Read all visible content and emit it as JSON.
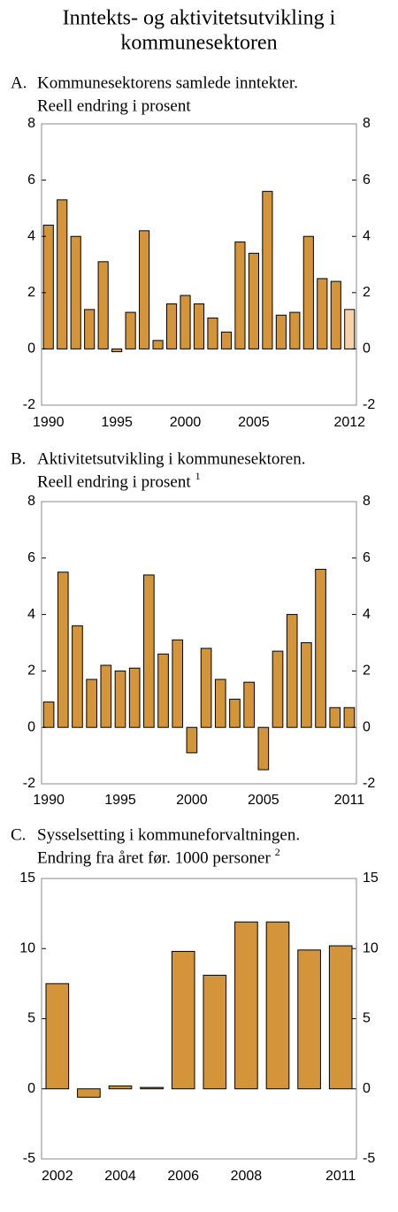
{
  "title": [
    "Inntekts- og aktivitetsutvikling i",
    "kommunesektoren"
  ],
  "chart_data": [
    {
      "type": "bar",
      "label": "A.",
      "title": [
        "Kommunesektorens samlede inntekter.",
        "Reell endring i prosent"
      ],
      "categories": [
        "1990",
        null,
        null,
        null,
        null,
        "1995",
        null,
        null,
        null,
        null,
        "2000",
        null,
        null,
        null,
        null,
        "2005",
        null,
        null,
        null,
        null,
        null,
        null,
        "2012"
      ],
      "values": [
        4.4,
        5.3,
        4.0,
        1.4,
        3.1,
        -0.1,
        1.3,
        4.2,
        0.3,
        1.6,
        1.9,
        1.6,
        1.1,
        0.6,
        3.8,
        3.4,
        5.6,
        1.2,
        1.3,
        4.0,
        2.5,
        2.4,
        1.4
      ],
      "colors": [
        "#d4943a",
        "#d4943a",
        "#d4943a",
        "#d4943a",
        "#d4943a",
        "#d4943a",
        "#d4943a",
        "#d4943a",
        "#d4943a",
        "#d4943a",
        "#d4943a",
        "#d4943a",
        "#d4943a",
        "#d4943a",
        "#d4943a",
        "#d4943a",
        "#d4943a",
        "#d4943a",
        "#d4943a",
        "#d4943a",
        "#d4943a",
        "#d4943a",
        "#f5d2a8"
      ],
      "ylim": [
        -2,
        8
      ],
      "yticks": [
        -2,
        0,
        2,
        4,
        6,
        8
      ]
    },
    {
      "type": "bar",
      "label": "B.",
      "title": [
        "Aktivitetsutvikling i kommunesektoren.",
        "Reell endring i prosent"
      ],
      "footnote": "1",
      "categories": [
        "1990",
        null,
        null,
        null,
        null,
        "1995",
        null,
        null,
        null,
        null,
        "2000",
        null,
        null,
        null,
        null,
        "2005",
        null,
        null,
        null,
        null,
        null,
        "2011"
      ],
      "values": [
        0.9,
        5.5,
        3.6,
        1.7,
        2.2,
        2.0,
        2.1,
        5.4,
        2.6,
        3.1,
        -0.9,
        2.8,
        1.7,
        1.0,
        1.6,
        -1.5,
        2.7,
        4.0,
        3.0,
        5.6,
        0.7,
        0.7
      ],
      "color": "#d4943a",
      "ylim": [
        -2,
        8
      ],
      "yticks": [
        -2,
        0,
        2,
        4,
        6,
        8
      ]
    },
    {
      "type": "bar",
      "label": "C.",
      "title": [
        "Sysselsetting i kommuneforvaltningen.",
        "Endring fra året før. 1000 personer"
      ],
      "footnote": "2",
      "categories": [
        "2002",
        null,
        "2004",
        null,
        "2006",
        null,
        "2008",
        null,
        null,
        "2011"
      ],
      "values": [
        7.5,
        -0.6,
        0.2,
        0.1,
        9.8,
        8.1,
        11.9,
        11.9,
        9.9,
        10.2
      ],
      "color": "#d4943a",
      "ylim": [
        -5,
        15
      ],
      "yticks": [
        -5,
        0,
        5,
        10,
        15
      ]
    }
  ]
}
